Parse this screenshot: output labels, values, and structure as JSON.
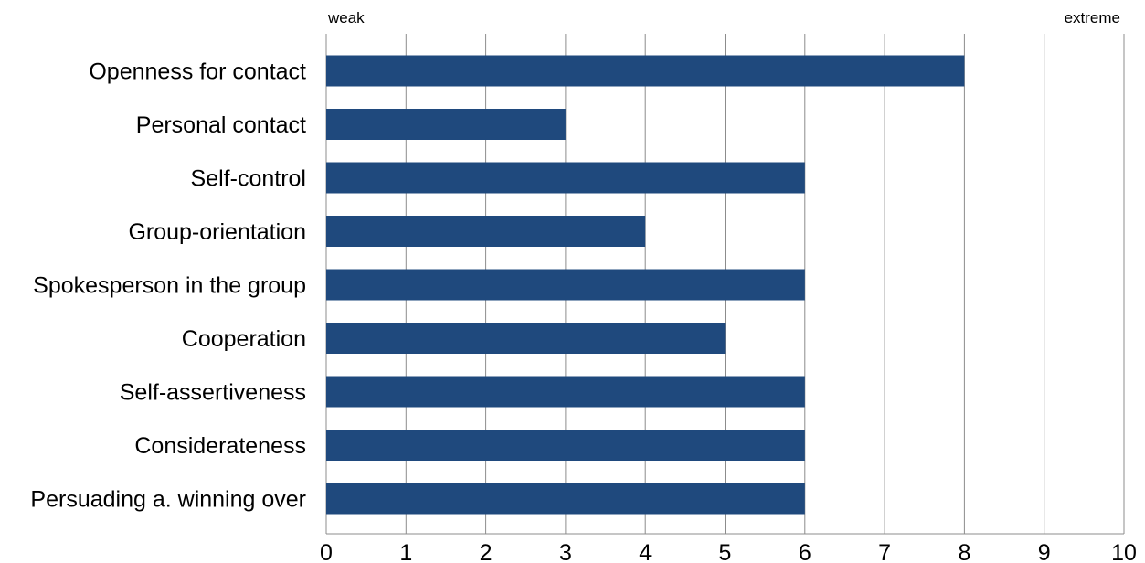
{
  "chart_data": {
    "type": "bar",
    "orientation": "horizontal",
    "categories": [
      "Openness for contact",
      "Personal contact",
      "Self-control",
      "Group-orientation",
      "Spokesperson in the group",
      "Cooperation",
      "Self-assertiveness",
      "Considerateness",
      "Persuading a. winning over"
    ],
    "values": [
      8,
      3,
      6,
      4,
      6,
      5,
      6,
      6,
      6
    ],
    "xlim": [
      0,
      10
    ],
    "xticks": [
      "0",
      "1",
      "2",
      "3",
      "4",
      "5",
      "6",
      "7",
      "8",
      "9",
      "10"
    ],
    "scale_low_label": "weak",
    "scale_high_label": "extreme",
    "grid": true,
    "bar_color": "#1f497d",
    "grid_color": "#8c8c8c"
  }
}
